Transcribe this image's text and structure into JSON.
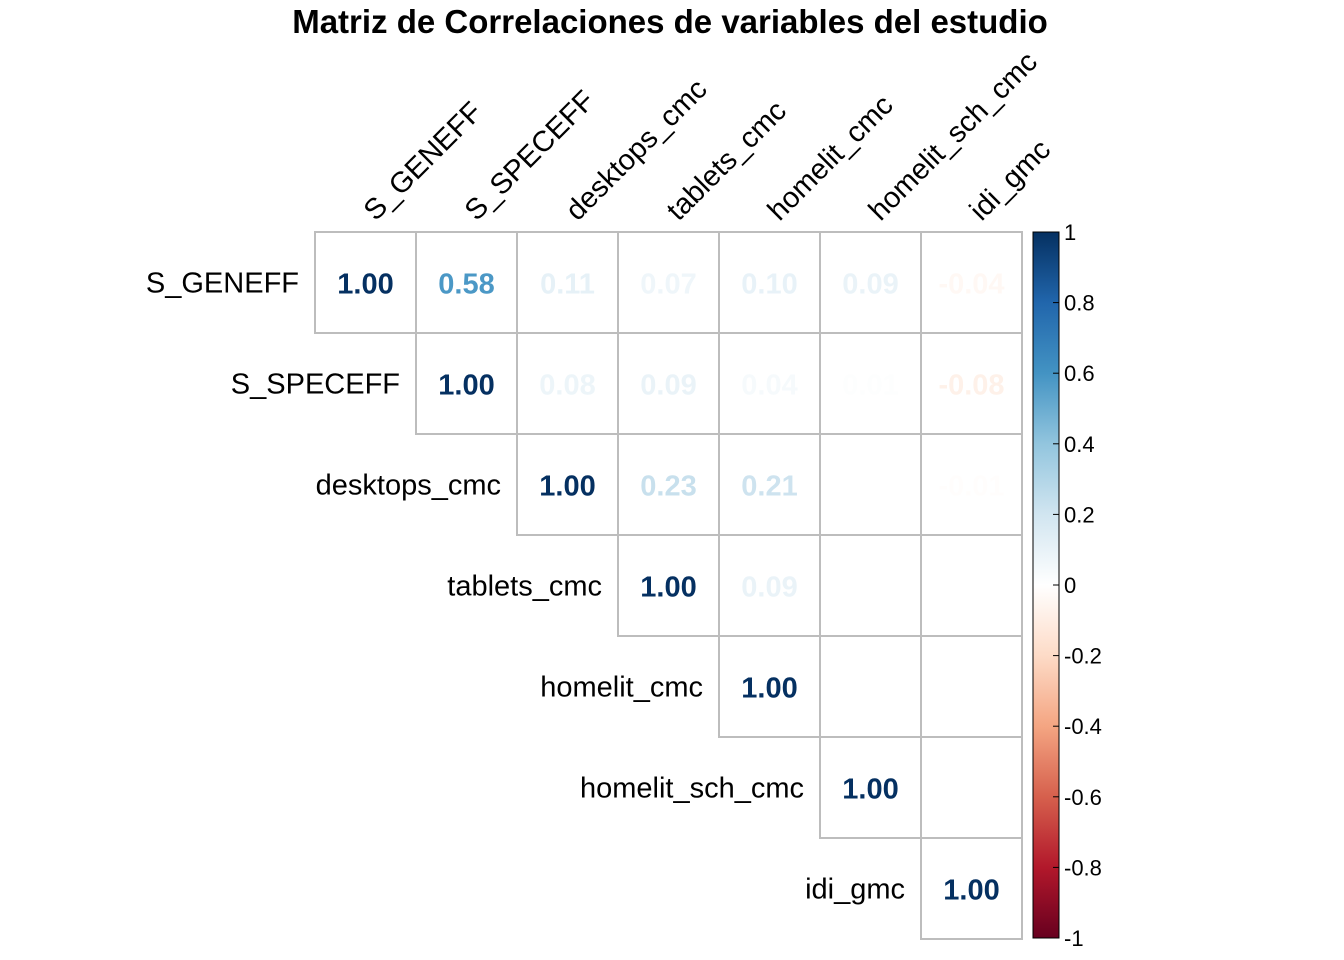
{
  "chart_data": {
    "type": "heatmap",
    "title": "Matriz de Correlaciones de variables del estudio",
    "variables": [
      "S_GENEFF",
      "S_SPECEFF",
      "desktops_cmc",
      "tablets_cmc",
      "homelit_cmc",
      "homelit_sch_cmc",
      "idi_gmc"
    ],
    "layout": "upper-triangular",
    "values": [
      [
        1.0,
        0.58,
        0.11,
        0.07,
        0.1,
        0.09,
        -0.04
      ],
      [
        null,
        1.0,
        0.08,
        0.09,
        0.04,
        0.01,
        -0.08
      ],
      [
        null,
        null,
        1.0,
        0.23,
        0.21,
        0.0,
        -0.01
      ],
      [
        null,
        null,
        null,
        1.0,
        0.09,
        0.0,
        0.0
      ],
      [
        null,
        null,
        null,
        null,
        1.0,
        0.0,
        0.0
      ],
      [
        null,
        null,
        null,
        null,
        null,
        1.0,
        0.0
      ],
      [
        null,
        null,
        null,
        null,
        null,
        null,
        1.0
      ]
    ],
    "value_format": "0.00",
    "colorbar": {
      "ticks": [
        "1",
        "0.8",
        "0.6",
        "0.4",
        "0.2",
        "0",
        "-0.2",
        "-0.4",
        "-0.6",
        "-0.8",
        "-1"
      ],
      "range": [
        -1,
        1
      ],
      "palette": [
        "#67001F",
        "#B2182B",
        "#D6604D",
        "#F4A582",
        "#FDDBC7",
        "#FFFFFF",
        "#D1E5F0",
        "#92C5DE",
        "#4393C3",
        "#2166AC",
        "#053061"
      ]
    },
    "grid": true
  }
}
